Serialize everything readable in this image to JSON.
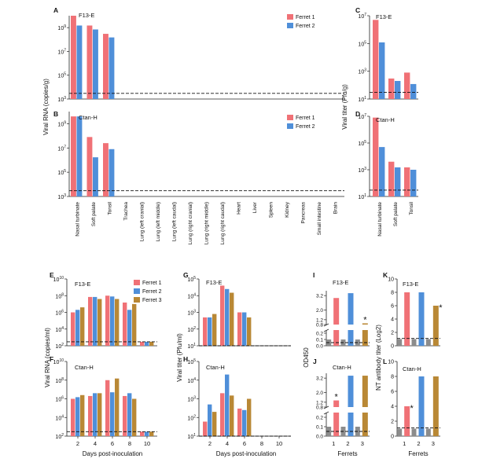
{
  "colors": {
    "ferret1": "#f07176",
    "ferret2": "#4f8fd9",
    "ferret3": "#b98835",
    "control": "#8c8c8c"
  },
  "chart_data": [
    {
      "panel": "A",
      "type": "bar",
      "subtitle": "F13-E",
      "scale": "log",
      "ylim_exp": [
        3,
        10
      ],
      "categories": [
        "Nasal turbinate",
        "Soft palate",
        "Tonsil",
        "Trachea",
        "Lung (left cranial)",
        "Lung (left middle)",
        "Lung (left caudal)",
        "Lung (right cranial)",
        "Lung (right middle)",
        "Lung (right caudal)",
        "Heart",
        "Liver",
        "Spleen",
        "Kidney",
        "Pancreas",
        "Small intestine",
        "Brain"
      ],
      "series": [
        {
          "name": "Ferret 1",
          "values": [
            10000000000.0,
            1500000000.0,
            300000000.0,
            1000,
            1000,
            1000,
            1000,
            1000,
            1000,
            1000,
            1000,
            1000,
            1000,
            1000,
            1000,
            1000,
            1000
          ]
        },
        {
          "name": "Ferret 2",
          "values": [
            1500000000.0,
            700000000.0,
            150000000.0,
            1000,
            1000,
            1000,
            1000,
            1000,
            1000,
            1000,
            1000,
            1000,
            1000,
            1000,
            1000,
            1000,
            1000
          ]
        }
      ],
      "detection_limit": 3000,
      "legend": "top-right"
    },
    {
      "panel": "B",
      "type": "bar",
      "subtitle": "Ctan-H",
      "scale": "log",
      "ylim_exp": [
        3,
        10
      ],
      "ylabel": "Viral RNA (copies/g)",
      "series": [
        {
          "name": "Ferret 1",
          "values": [
            4000000000.0,
            80000000.0,
            25000000.0,
            1000,
            1000,
            1000,
            1000,
            1000,
            1000,
            1000,
            1000,
            1000,
            1000,
            1000,
            1000,
            1000,
            1000
          ]
        },
        {
          "name": "Ferret 2",
          "values": [
            4000000000.0,
            1700000.0,
            8000000.0,
            1000,
            1000,
            1000,
            1000,
            1000,
            1000,
            1000,
            1000,
            1000,
            1000,
            1000,
            1000,
            1000,
            1000
          ]
        }
      ],
      "detection_limit": 3000,
      "legend": "top-right"
    },
    {
      "panel": "C",
      "type": "bar",
      "subtitle": "F13-E",
      "scale": "log",
      "ylim_exp": [
        1,
        7
      ],
      "categories": [
        "Nasal turbinate",
        "Soft palate",
        "Tonsil"
      ],
      "series": [
        {
          "name": "Ferret 1",
          "values": [
            5000000.0,
            300,
            800
          ]
        },
        {
          "name": "Ferret 2",
          "values": [
            120000,
            200,
            120
          ]
        }
      ],
      "detection_limit": 30
    },
    {
      "panel": "D",
      "type": "bar",
      "subtitle": "Ctan-H",
      "scale": "log",
      "ylim_exp": [
        1,
        7
      ],
      "ylabel": "Viral titer (Pfu/g)",
      "series": [
        {
          "name": "Ferret 1",
          "values": [
            8000000.0,
            4000,
            1500
          ]
        },
        {
          "name": "Ferret 2",
          "values": [
            50000,
            1500,
            1000
          ]
        }
      ],
      "detection_limit": 30
    },
    {
      "panel": "E",
      "type": "bar",
      "subtitle": "F13-E",
      "scale": "log",
      "ylim_exp": [
        2,
        10
      ],
      "x": [
        "2",
        "4",
        "6",
        "8",
        "10"
      ],
      "series": [
        {
          "name": "Ferret 1",
          "values": [
            1000000.0,
            70000000.0,
            100000000.0,
            15000000.0,
            300
          ]
        },
        {
          "name": "Ferret 2",
          "values": [
            2000000.0,
            70000000.0,
            80000000.0,
            2000000.0,
            300
          ]
        },
        {
          "name": "Ferret 3",
          "values": [
            4000000.0,
            40000000.0,
            40000000.0,
            10000000.0,
            300
          ]
        }
      ],
      "detection_limit": 300,
      "legend": "top-right"
    },
    {
      "panel": "F",
      "type": "bar",
      "subtitle": "Ctan-H",
      "scale": "log",
      "ylim_exp": [
        2,
        10
      ],
      "ylabel": "Viral RNA (copies/ml)",
      "xlabel": "Days post-inoculation",
      "series": [
        {
          "name": "Ferret 1",
          "values": [
            1000000.0,
            2000000.0,
            100000000.0,
            2000000.0,
            300
          ]
        },
        {
          "name": "Ferret 2",
          "values": [
            1500000.0,
            4000000.0,
            5000000.0,
            4000000.0,
            300
          ]
        },
        {
          "name": "Ferret 3",
          "values": [
            2500000.0,
            4000000.0,
            150000000.0,
            1000000.0,
            300
          ]
        }
      ],
      "detection_limit": 300
    },
    {
      "panel": "G",
      "type": "bar",
      "subtitle": "F13-E",
      "scale": "log",
      "ylim_exp": [
        1,
        5
      ],
      "x": [
        "2",
        "4",
        "6",
        "8",
        "10"
      ],
      "series": [
        {
          "name": "Ferret 1",
          "values": [
            500,
            40000,
            1000,
            10,
            10
          ]
        },
        {
          "name": "Ferret 2",
          "values": [
            500,
            25000,
            1000,
            10,
            10
          ]
        },
        {
          "name": "Ferret 3",
          "values": [
            800,
            15000,
            500,
            10,
            10
          ]
        }
      ],
      "detection_limit": 10
    },
    {
      "panel": "H",
      "type": "bar",
      "subtitle": "Ctan-H",
      "scale": "log",
      "ylim_exp": [
        1,
        5
      ],
      "ylabel": "Viral titer (Pfu/ml)",
      "xlabel": "Days post-inoculation",
      "series": [
        {
          "name": "Ferret 1",
          "values": [
            60,
            2000,
            300,
            10,
            10
          ]
        },
        {
          "name": "Ferret 2",
          "values": [
            500,
            20000,
            250,
            10,
            10
          ]
        },
        {
          "name": "Ferret 3",
          "values": [
            200,
            1500,
            1000,
            10,
            10
          ]
        }
      ],
      "detection_limit": 10
    },
    {
      "panel": "I",
      "type": "bar",
      "subtitle": "F13-E",
      "scale": "broken",
      "x": [
        "1",
        "2",
        "3"
      ],
      "values": [
        3.0,
        3.4,
        0.9
      ],
      "controls": [
        0.02,
        0.02,
        0.02
      ],
      "significant": [
        false,
        false,
        true
      ],
      "cutoff": 0.05
    },
    {
      "panel": "J",
      "type": "bar",
      "subtitle": "Ctan-H",
      "scale": "broken",
      "ylabel": "OD450",
      "xlabel": "Ferrets",
      "values": [
        1.35,
        3.4,
        3.4
      ],
      "controls": [
        0.02,
        0.02,
        0.02
      ],
      "significant": [
        true,
        false,
        false
      ],
      "cutoff": 0.05
    },
    {
      "panel": "K",
      "type": "bar",
      "subtitle": "F13-E",
      "scale": "linear",
      "ylim": [
        0,
        10
      ],
      "x": [
        "1",
        "2",
        "3"
      ],
      "values": [
        8,
        8,
        6
      ],
      "controls": [
        1,
        1,
        1
      ],
      "significant": [
        false,
        false,
        true
      ],
      "cutoff": 1.1
    },
    {
      "panel": "L",
      "type": "bar",
      "subtitle": "Ctan-H",
      "scale": "linear",
      "ylim": [
        0,
        10
      ],
      "ylabel": "NT antibody titer (Log2)",
      "xlabel": "Ferrets",
      "values": [
        4,
        8,
        8
      ],
      "controls": [
        1,
        1,
        1
      ],
      "significant": [
        true,
        false,
        false
      ],
      "cutoff": 1.1
    }
  ],
  "legend_labels": {
    "ferret1": "Ferret 1",
    "ferret2": "Ferret 2",
    "ferret3": "Ferret 3"
  }
}
